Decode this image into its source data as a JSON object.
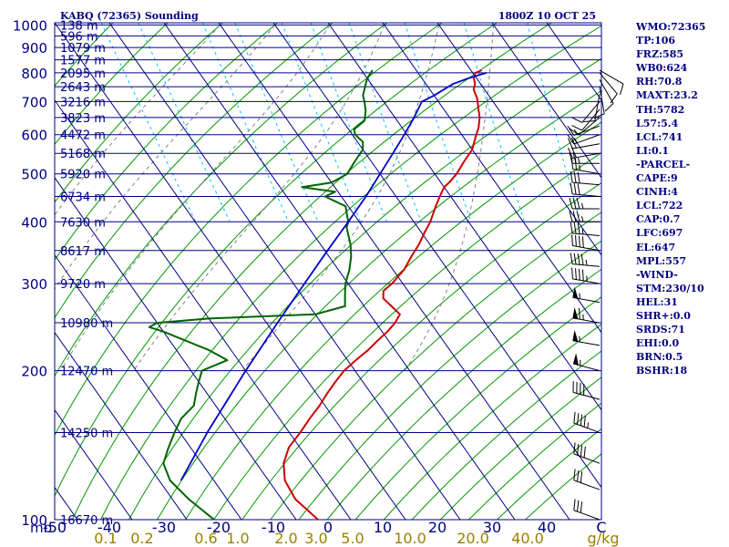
{
  "header": {
    "station": "KABQ (72365) Sounding",
    "time": "1800Z 10 OCT 25"
  },
  "indices": [
    "WMO:72365",
    "TP:106",
    "FRZ:585",
    "WB0:624",
    "RH:70.8",
    "MAXT:23.2",
    "TH:5782",
    "L57:5.4",
    "LCL:741",
    "LI:0.1",
    "-PARCEL-",
    "CAPE:9",
    "CINH:4",
    "LCL:722",
    "CAP:0.7",
    "LFC:697",
    "EL:647",
    "MPL:557",
    "-WIND-",
    "STM:230/10",
    "HEL:31",
    "SHR+:0.0",
    "SRDS:71",
    "EHI:0.0",
    "BRN:0.5",
    "BSHR:18"
  ],
  "colors": {
    "isobar": "#000080",
    "isotherm": "#000080",
    "dry_adiabat": "#009900",
    "moist_adiabat": "#808080",
    "mixing_ratio": "#00bfff",
    "temperature": "#cc0000",
    "dewpoint": "#006400",
    "parcel": "#0000cd",
    "wind_barb": "#000000",
    "mixing_ratio_label": "#9a8000"
  },
  "chart_data": {
    "type": "skew-t",
    "ylabel": "mb",
    "pressure_axis": {
      "levels": [
        100,
        200,
        300,
        400,
        500,
        600,
        700,
        800,
        900,
        1000
      ],
      "range_mb": [
        1000,
        100
      ],
      "scale": "log"
    },
    "height_labels": [
      {
        "p": 100,
        "label": "16670 m"
      },
      {
        "p": 150,
        "label": "14250 m"
      },
      {
        "p": 200,
        "label": "12470 m"
      },
      {
        "p": 250,
        "label": "10980 m"
      },
      {
        "p": 300,
        "label": "9720 m"
      },
      {
        "p": 350,
        "label": "8617 m"
      },
      {
        "p": 400,
        "label": "7630 m"
      },
      {
        "p": 450,
        "label": "6734 m"
      },
      {
        "p": 500,
        "label": "5920 m"
      },
      {
        "p": 550,
        "label": "5168 m"
      },
      {
        "p": 600,
        "label": "4472 m"
      },
      {
        "p": 650,
        "label": "3823 m"
      },
      {
        "p": 700,
        "label": "3216 m"
      },
      {
        "p": 750,
        "label": "2643 m"
      },
      {
        "p": 800,
        "label": "2095 m"
      },
      {
        "p": 850,
        "label": "1577 m"
      },
      {
        "p": 900,
        "label": "1079 m"
      },
      {
        "p": 950,
        "label": "596 m"
      },
      {
        "p": 1000,
        "label": "138 m"
      }
    ],
    "temperature_axis": {
      "ticks": [
        -50,
        -40,
        -30,
        -20,
        -10,
        0,
        10,
        20,
        30,
        40
      ],
      "end_label": "C",
      "range_c": [
        -50,
        50
      ]
    },
    "mixing_ratio_axis": {
      "ticks": [
        "0.1",
        "0.2",
        "0.6",
        "1.0",
        "2.0",
        "3.0",
        "5.0",
        "10.0",
        "20.0",
        "40.0"
      ],
      "unit": "g/kg"
    },
    "series": [
      {
        "key": "temperature",
        "points": [
          [
            810,
            22.0
          ],
          [
            800,
            20.5
          ],
          [
            780,
            19.5
          ],
          [
            760,
            19.0
          ],
          [
            740,
            18.0
          ],
          [
            710,
            17.5
          ],
          [
            680,
            16.5
          ],
          [
            650,
            15.5
          ],
          [
            620,
            14.0
          ],
          [
            590,
            12.0
          ],
          [
            560,
            10.0
          ],
          [
            530,
            7.0
          ],
          [
            500,
            4.0
          ],
          [
            480,
            1.5
          ],
          [
            470,
            0.0
          ],
          [
            450,
            -2.0
          ],
          [
            430,
            -4.0
          ],
          [
            400,
            -7.0
          ],
          [
            380,
            -9.5
          ],
          [
            360,
            -12.0
          ],
          [
            340,
            -15.0
          ],
          [
            320,
            -18.0
          ],
          [
            300,
            -22.0
          ],
          [
            290,
            -24.5
          ],
          [
            280,
            -25.5
          ],
          [
            270,
            -25.0
          ],
          [
            260,
            -24.5
          ],
          [
            250,
            -26.5
          ],
          [
            240,
            -29.0
          ],
          [
            230,
            -32.0
          ],
          [
            220,
            -35.0
          ],
          [
            210,
            -38.5
          ],
          [
            200,
            -42.0
          ],
          [
            190,
            -45.0
          ],
          [
            180,
            -48.0
          ],
          [
            170,
            -51.0
          ],
          [
            160,
            -54.5
          ],
          [
            150,
            -58.0
          ],
          [
            140,
            -62.0
          ],
          [
            130,
            -65.0
          ],
          [
            120,
            -67.0
          ],
          [
            110,
            -67.5
          ],
          [
            100,
            -66.0
          ]
        ]
      },
      {
        "key": "dewpoint",
        "points": [
          [
            810,
            2.0
          ],
          [
            780,
            0.0
          ],
          [
            750,
            -1.5
          ],
          [
            720,
            -3.0
          ],
          [
            700,
            -3.5
          ],
          [
            670,
            -4.5
          ],
          [
            640,
            -6.0
          ],
          [
            615,
            -9.0
          ],
          [
            600,
            -9.5
          ],
          [
            580,
            -9.0
          ],
          [
            560,
            -10.0
          ],
          [
            530,
            -13.0
          ],
          [
            500,
            -16.0
          ],
          [
            480,
            -20.0
          ],
          [
            470,
            -26.0
          ],
          [
            460,
            -20.5
          ],
          [
            450,
            -23.0
          ],
          [
            430,
            -20.5
          ],
          [
            410,
            -21.5
          ],
          [
            400,
            -22.0
          ],
          [
            390,
            -23.0
          ],
          [
            380,
            -23.5
          ],
          [
            360,
            -24.5
          ],
          [
            340,
            -26.0
          ],
          [
            320,
            -28.0
          ],
          [
            300,
            -30.5
          ],
          [
            290,
            -31.5
          ],
          [
            280,
            -32.5
          ],
          [
            270,
            -33.5
          ],
          [
            260,
            -40.0
          ],
          [
            255,
            -60.0
          ],
          [
            250,
            -70.0
          ],
          [
            245,
            -72.0
          ],
          [
            240,
            -70.0
          ],
          [
            220,
            -64.0
          ],
          [
            210,
            -62.0
          ],
          [
            200,
            -68.0
          ],
          [
            190,
            -70.0
          ],
          [
            180,
            -72.0
          ],
          [
            170,
            -74.0
          ],
          [
            160,
            -78.0
          ],
          [
            150,
            -81.0
          ],
          [
            140,
            -84.0
          ],
          [
            130,
            -87.0
          ],
          [
            120,
            -88.0
          ],
          [
            110,
            -87.0
          ],
          [
            100,
            -85.0
          ]
        ]
      },
      {
        "key": "parcel",
        "points": [
          [
            800,
            22.5
          ],
          [
            780,
            18.5
          ],
          [
            760,
            15.0
          ],
          [
            740,
            12.5
          ],
          [
            720,
            10.0
          ],
          [
            700,
            7.0
          ],
          [
            650,
            3.5
          ],
          [
            600,
            -0.5
          ],
          [
            550,
            -5.0
          ],
          [
            500,
            -10.0
          ],
          [
            450,
            -15.5
          ],
          [
            400,
            -22.0
          ],
          [
            350,
            -29.5
          ],
          [
            300,
            -38.0
          ],
          [
            250,
            -48.0
          ],
          [
            200,
            -60.0
          ],
          [
            150,
            -75.0
          ],
          [
            120,
            -86.0
          ]
        ]
      }
    ],
    "wind_profile": [
      {
        "p": 100,
        "dir": 290,
        "spd": 30
      },
      {
        "p": 115,
        "dir": 290,
        "spd": 30
      },
      {
        "p": 130,
        "dir": 290,
        "spd": 40
      },
      {
        "p": 150,
        "dir": 290,
        "spd": 45
      },
      {
        "p": 175,
        "dir": 285,
        "spd": 40
      },
      {
        "p": 200,
        "dir": 285,
        "spd": 55
      },
      {
        "p": 225,
        "dir": 280,
        "spd": 55
      },
      {
        "p": 250,
        "dir": 280,
        "spd": 65
      },
      {
        "p": 275,
        "dir": 280,
        "spd": 55
      },
      {
        "p": 300,
        "dir": 280,
        "spd": 45
      },
      {
        "p": 325,
        "dir": 275,
        "spd": 45
      },
      {
        "p": 350,
        "dir": 280,
        "spd": 40
      },
      {
        "p": 375,
        "dir": 275,
        "spd": 35
      },
      {
        "p": 400,
        "dir": 270,
        "spd": 35
      },
      {
        "p": 425,
        "dir": 270,
        "spd": 35
      },
      {
        "p": 450,
        "dir": 275,
        "spd": 30
      },
      {
        "p": 475,
        "dir": 275,
        "spd": 30
      },
      {
        "p": 500,
        "dir": 280,
        "spd": 25
      },
      {
        "p": 525,
        "dir": 270,
        "spd": 25
      },
      {
        "p": 550,
        "dir": 260,
        "spd": 20
      },
      {
        "p": 575,
        "dir": 260,
        "spd": 20
      },
      {
        "p": 600,
        "dir": 250,
        "spd": 15
      },
      {
        "p": 625,
        "dir": 250,
        "spd": 15
      },
      {
        "p": 650,
        "dir": 230,
        "spd": 10
      },
      {
        "p": 675,
        "dir": 220,
        "spd": 10
      },
      {
        "p": 700,
        "dir": 220,
        "spd": 10
      },
      {
        "p": 725,
        "dir": 190,
        "spd": 10
      },
      {
        "p": 750,
        "dir": 170,
        "spd": 10
      },
      {
        "p": 775,
        "dir": 150,
        "spd": 10
      },
      {
        "p": 800,
        "dir": 140,
        "spd": 10
      },
      {
        "p": 810,
        "dir": 120,
        "spd": 10
      }
    ]
  }
}
